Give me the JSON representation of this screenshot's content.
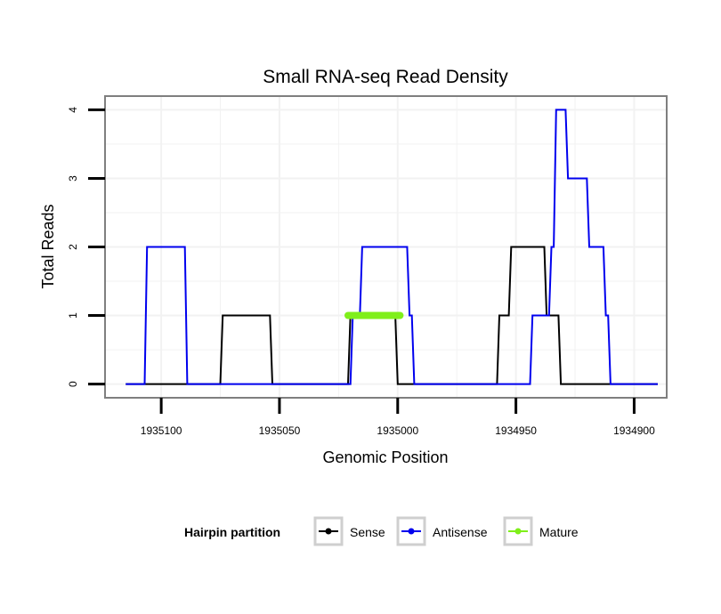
{
  "chart_data": {
    "type": "line",
    "title": "Small RNA-seq Read Density",
    "xlabel": "Genomic Position",
    "ylabel": "Total Reads",
    "xlim": [
      1935120,
      1934890
    ],
    "x_reversed": true,
    "ylim": [
      -0.2,
      4.2
    ],
    "x_ticks": [
      1935100,
      1935050,
      1935000,
      1934950,
      1934900
    ],
    "x_tick_labels": [
      "1935100",
      "1935050",
      "1935000",
      "1934950",
      "1934900"
    ],
    "y_ticks": [
      0,
      1,
      2,
      3,
      4
    ],
    "y_tick_labels": [
      "0",
      "1",
      "2",
      "3",
      "4"
    ],
    "grid": true,
    "legend": {
      "title": "Hairpin partition",
      "position": "bottom",
      "entries": [
        "Sense",
        "Antisense",
        "Mature"
      ]
    },
    "series": [
      {
        "name": "Sense",
        "color": "#000000",
        "x": [
          1935115,
          1935075,
          1935074,
          1935054,
          1935053,
          1935021,
          1935020,
          1935001,
          1935000,
          1934958,
          1934957,
          1934953,
          1934952,
          1934938,
          1934937,
          1934932,
          1934931,
          1934890
        ],
        "y": [
          0,
          0,
          1,
          1,
          0,
          0,
          1,
          1,
          0,
          0,
          1,
          1,
          2,
          2,
          1,
          1,
          0,
          0
        ]
      },
      {
        "name": "Antisense",
        "color": "#0000ee",
        "x": [
          1935115,
          1935107,
          1935106,
          1935090,
          1935089,
          1935020,
          1935019,
          1935016,
          1935015,
          1934996,
          1934995,
          1934994,
          1934993,
          1934944,
          1934943,
          1934936,
          1934935,
          1934934,
          1934933,
          1934929,
          1934928,
          1934920,
          1934919,
          1934913,
          1934912,
          1934911,
          1934910,
          1934890
        ],
        "y": [
          0,
          0,
          2,
          2,
          0,
          0,
          1,
          1,
          2,
          2,
          1,
          1,
          0,
          0,
          1,
          1,
          2,
          2,
          4,
          4,
          3,
          3,
          2,
          2,
          1,
          1,
          0,
          0
        ]
      },
      {
        "name": "Mature",
        "color": "#7fef1a",
        "x": [
          1935021,
          1934999
        ],
        "y": [
          1,
          1
        ]
      }
    ]
  }
}
